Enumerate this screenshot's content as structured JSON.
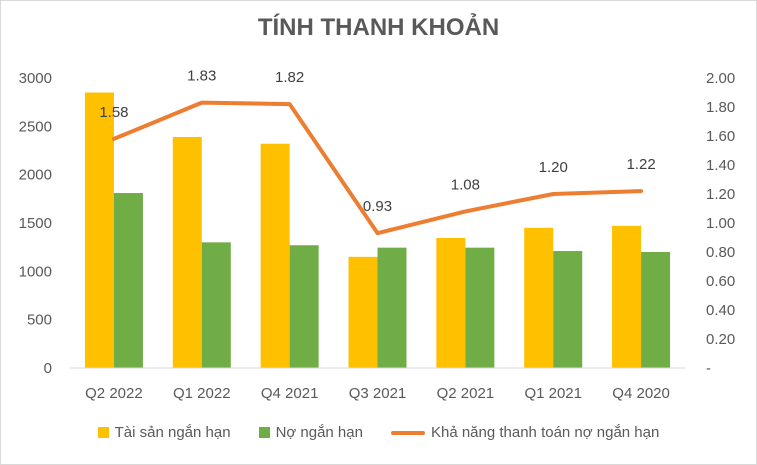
{
  "chart_data": {
    "type": "bar",
    "title": "TÍNH THANH KHOẢN",
    "categories": [
      "Q2 2022",
      "Q1 2022",
      "Q4 2021",
      "Q3 2021",
      "Q2 2021",
      "Q1 2021",
      "Q4 2020"
    ],
    "series": [
      {
        "name": "Tài sản ngắn hạn",
        "type": "bar",
        "axis": "left",
        "color": "#FFC000",
        "values": [
          2850,
          2390,
          2320,
          1150,
          1345,
          1450,
          1470
        ]
      },
      {
        "name": "Nợ ngắn hạn",
        "type": "bar",
        "axis": "left",
        "color": "#70AD47",
        "values": [
          1810,
          1300,
          1270,
          1245,
          1245,
          1210,
          1200
        ]
      },
      {
        "name": "Khả năng thanh toán nợ ngắn hạn",
        "type": "line",
        "axis": "right",
        "color": "#ED7D31",
        "values": [
          1.58,
          1.83,
          1.82,
          0.93,
          1.08,
          1.2,
          1.22
        ],
        "labels": [
          "1.58",
          "1.83",
          "1.82",
          "0.93",
          "1.08",
          "1.20",
          "1.22"
        ]
      }
    ],
    "ylim_left": [
      0,
      3000
    ],
    "yticks_left": [
      "0",
      "500",
      "1000",
      "1500",
      "2000",
      "2500",
      "3000"
    ],
    "ylim_right": [
      0,
      2.0
    ],
    "yticks_right": [
      "-",
      "0.20",
      "0.40",
      "0.60",
      "0.80",
      "1.00",
      "1.20",
      "1.40",
      "1.60",
      "1.80",
      "2.00"
    ],
    "grid": false,
    "legend_position": "bottom"
  }
}
